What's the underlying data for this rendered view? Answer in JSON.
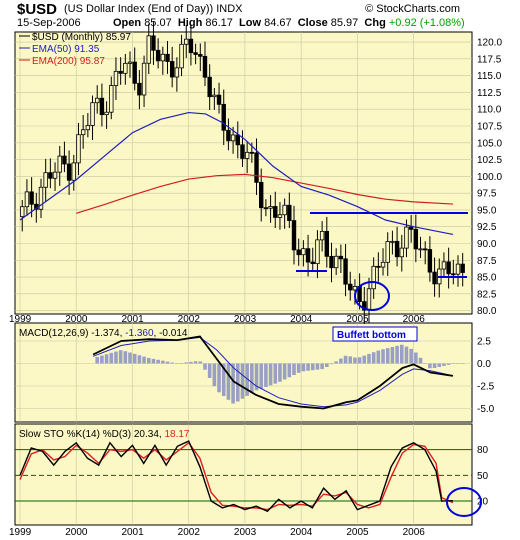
{
  "header": {
    "symbol": "$USD",
    "name": "(US Dollar Index (End of Day)) INDX",
    "source": "© StockCharts.com",
    "date": "15-Sep-2006",
    "open_label": "Open",
    "open": "85.07",
    "high_label": "High",
    "high": "86.17",
    "low_label": "Low",
    "low": "84.67",
    "close_label": "Close",
    "close": "85.97",
    "chg_label": "Chg",
    "chg": "+0.92 (+1.08%)"
  },
  "colors": {
    "panel_bg": "#fbf8c6",
    "grid": "#c8c8a0",
    "price": "#000000",
    "ema50": "#1e1ebe",
    "ema200": "#d21e1e",
    "annotation": "#0000dd",
    "macd_hist": "#9aa0c4",
    "k_line": "#000000",
    "d_line": "#e01e1e",
    "sto_level": "#006400"
  },
  "chart_data": [
    {
      "type": "candlestick",
      "periodicity": "monthly",
      "legend": [
        {
          "label": "$USD (Monthly) 85.97",
          "color": "#000000"
        },
        {
          "label": "EMA(50) 91.35",
          "color": "#1e1ebe"
        },
        {
          "label": "EMA(200) 95.87",
          "color": "#d21e1e"
        }
      ],
      "ylim": [
        79.5,
        121.5
      ],
      "yticks": [
        "80.0",
        "82.5",
        "85.0",
        "87.5",
        "90.0",
        "92.5",
        "95.0",
        "97.5",
        "100.0",
        "102.5",
        "105.0",
        "107.5",
        "110.0",
        "112.5",
        "115.0",
        "117.5",
        "120.0"
      ],
      "x_years": [
        "1999",
        "2000",
        "2001",
        "2002",
        "2003",
        "2004",
        "2005",
        "2006"
      ],
      "annotation": "Buffett bottom",
      "close_series": {
        "x": [
          1999.0,
          1999.5,
          1999.9,
          2000.3,
          2000.6,
          2000.85,
          2001.1,
          2001.3,
          2001.6,
          2001.85,
          2002.0,
          2002.3,
          2002.5,
          2002.75,
          2003.0,
          2003.2,
          2003.4,
          2003.6,
          2003.8,
          2004.0,
          2004.15,
          2004.35,
          2004.5,
          2004.7,
          2004.85,
          2005.0,
          2005.15,
          2005.35,
          2005.55,
          2005.8,
          2005.95,
          2006.1,
          2006.3,
          2006.5,
          2006.7
        ],
        "values": [
          94,
          100,
          102,
          110,
          112,
          117,
          114,
          119,
          117,
          117,
          120,
          116,
          109,
          106,
          104,
          99,
          95,
          95,
          92,
          89,
          87,
          90,
          89,
          87,
          83,
          81,
          83,
          86,
          89,
          91,
          91,
          89,
          87,
          85,
          86
        ]
      },
      "ema50": {
        "x": [
          1999.0,
          1999.5,
          2000.0,
          2000.5,
          2001.0,
          2001.5,
          2002.0,
          2002.3,
          2002.6,
          2003.0,
          2003.5,
          2004.0,
          2004.5,
          2005.0,
          2005.5,
          2006.0,
          2006.7
        ],
        "values": [
          93.5,
          96.5,
          99.5,
          103,
          106.5,
          108.5,
          109.5,
          109.3,
          108,
          105.5,
          101.5,
          98.5,
          97.2,
          95.5,
          93.5,
          92.5,
          91.35
        ]
      },
      "ema200": {
        "x": [
          2000.0,
          2000.5,
          2001.0,
          2001.5,
          2002.0,
          2002.5,
          2003.0,
          2003.5,
          2004.0,
          2004.5,
          2005.0,
          2005.5,
          2006.0,
          2006.7
        ],
        "values": [
          94.5,
          95.8,
          97.2,
          98.5,
          99.6,
          100.1,
          100.3,
          99.8,
          99,
          98.2,
          97.3,
          96.6,
          96.2,
          95.87
        ]
      }
    },
    {
      "type": "macd",
      "label_main": "MACD(12,26,9)",
      "value_macd": "-1.374",
      "value_signal": "-1.360",
      "value_hist": "-0.014",
      "ylim": [
        -6.5,
        4.5
      ],
      "yticks": [
        "2.5",
        "0.0",
        "-2.5",
        "-5.0"
      ],
      "macd": {
        "x": [
          2000.3,
          2000.8,
          2001.3,
          2001.8,
          2002.2,
          2002.5,
          2002.8,
          2003.2,
          2003.6,
          2004.0,
          2004.4,
          2004.8,
          2005.0,
          2005.4,
          2005.8,
          2006.0,
          2006.3,
          2006.7
        ],
        "values": [
          1.0,
          2.5,
          2.7,
          2.6,
          3.0,
          0.5,
          -2.0,
          -3.5,
          -4.5,
          -4.8,
          -5.0,
          -4.3,
          -4.1,
          -2.5,
          -0.5,
          -0.1,
          -1.0,
          -1.374
        ]
      },
      "signal": {
        "x": [
          2000.3,
          2000.8,
          2001.3,
          2001.8,
          2002.2,
          2002.5,
          2002.8,
          2003.2,
          2003.6,
          2004.0,
          2004.4,
          2004.8,
          2005.0,
          2005.4,
          2005.8,
          2006.0,
          2006.3,
          2006.7
        ],
        "values": [
          0.8,
          2.0,
          2.5,
          2.6,
          2.9,
          1.5,
          -0.5,
          -2.5,
          -3.8,
          -4.5,
          -4.8,
          -4.6,
          -4.3,
          -3.0,
          -1.2,
          -0.6,
          -0.8,
          -1.36
        ]
      }
    },
    {
      "type": "stochastic",
      "label_main": "Slow STO %K(14) %D(3)",
      "value_k": "20.34",
      "value_d": "18.17",
      "ylim": [
        0,
        100
      ],
      "yticks": [
        "80",
        "50",
        "20"
      ],
      "k": {
        "x": [
          1999.0,
          1999.2,
          1999.4,
          1999.6,
          1999.8,
          2000.0,
          2000.2,
          2000.4,
          2000.6,
          2000.8,
          2001.0,
          2001.2,
          2001.4,
          2001.6,
          2001.8,
          2002.0,
          2002.2,
          2002.4,
          2002.6,
          2002.8,
          2003.0,
          2003.2,
          2003.4,
          2003.6,
          2003.8,
          2004.0,
          2004.2,
          2004.4,
          2004.6,
          2004.8,
          2005.0,
          2005.2,
          2005.4,
          2005.6,
          2005.8,
          2006.0,
          2006.2,
          2006.4,
          2006.5,
          2006.7
        ],
        "values": [
          50,
          82,
          78,
          62,
          78,
          88,
          70,
          62,
          88,
          72,
          85,
          64,
          85,
          62,
          84,
          90,
          60,
          20,
          12,
          16,
          10,
          14,
          8,
          22,
          12,
          20,
          12,
          35,
          22,
          32,
          10,
          15,
          20,
          60,
          82,
          88,
          80,
          55,
          20,
          20.34
        ]
      },
      "d": {
        "x": [
          1999.0,
          1999.2,
          1999.4,
          1999.6,
          1999.8,
          2000.0,
          2000.2,
          2000.4,
          2000.6,
          2000.8,
          2001.0,
          2001.2,
          2001.4,
          2001.6,
          2001.8,
          2002.0,
          2002.2,
          2002.4,
          2002.6,
          2002.8,
          2003.0,
          2003.2,
          2003.4,
          2003.6,
          2003.8,
          2004.0,
          2004.2,
          2004.4,
          2004.6,
          2004.8,
          2005.0,
          2005.2,
          2005.4,
          2005.6,
          2005.8,
          2006.0,
          2006.2,
          2006.4,
          2006.5,
          2006.7
        ],
        "values": [
          45,
          75,
          80,
          68,
          72,
          85,
          76,
          64,
          80,
          78,
          80,
          70,
          80,
          68,
          78,
          88,
          70,
          30,
          15,
          14,
          12,
          12,
          10,
          16,
          15,
          16,
          14,
          28,
          26,
          30,
          16,
          12,
          16,
          48,
          76,
          86,
          84,
          64,
          24,
          18.17
        ]
      }
    }
  ]
}
